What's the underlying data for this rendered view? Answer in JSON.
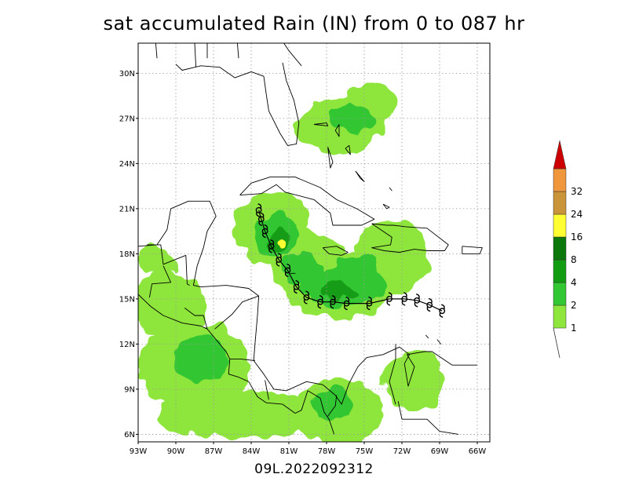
{
  "title": "sat accumulated Rain (IN) from 0 to 087 hr",
  "storm_label": "09L.2022092312",
  "map": {
    "lon_range": [
      -93,
      -65
    ],
    "lat_range": [
      5.5,
      32
    ],
    "lon_ticks": [
      {
        "value": -93,
        "label": "93W"
      },
      {
        "value": -90,
        "label": "90W"
      },
      {
        "value": -87,
        "label": "87W"
      },
      {
        "value": -84,
        "label": "84W"
      },
      {
        "value": -81,
        "label": "81W"
      },
      {
        "value": -78,
        "label": "78W"
      },
      {
        "value": -75,
        "label": "75W"
      },
      {
        "value": -72,
        "label": "72W"
      },
      {
        "value": -69,
        "label": "69W"
      },
      {
        "value": -66,
        "label": "66W"
      }
    ],
    "lat_ticks": [
      {
        "value": 6,
        "label": "6N"
      },
      {
        "value": 9,
        "label": "9N"
      },
      {
        "value": 12,
        "label": "12N"
      },
      {
        "value": 15,
        "label": "15N"
      },
      {
        "value": 18,
        "label": "18N"
      },
      {
        "value": 21,
        "label": "21N"
      },
      {
        "value": 24,
        "label": "24N"
      },
      {
        "value": 27,
        "label": "27N"
      },
      {
        "value": 30,
        "label": "30N"
      }
    ]
  },
  "colorbar": {
    "levels": [
      {
        "label": "1",
        "color": "#8ee63c"
      },
      {
        "label": "2",
        "color": "#33c733"
      },
      {
        "label": "4",
        "color": "#129c12"
      },
      {
        "label": "8",
        "color": "#0c780c"
      },
      {
        "label": "16",
        "color": "#ffff33"
      },
      {
        "label": "24",
        "color": "#c9943a"
      },
      {
        "label": "32",
        "color": "#f0963c"
      }
    ],
    "top_color": "#cc0000"
  },
  "track_points": [
    {
      "lon": -68.8,
      "lat": 14.2
    },
    {
      "lon": -69.8,
      "lat": 14.6
    },
    {
      "lon": -70.8,
      "lat": 14.9
    },
    {
      "lon": -71.8,
      "lat": 15.0
    },
    {
      "lon": -73.0,
      "lat": 15.0
    },
    {
      "lon": -74.6,
      "lat": 14.7
    },
    {
      "lon": -76.4,
      "lat": 14.7
    },
    {
      "lon": -77.5,
      "lat": 14.8
    },
    {
      "lon": -78.5,
      "lat": 14.8
    },
    {
      "lon": -79.6,
      "lat": 15.1
    },
    {
      "lon": -80.4,
      "lat": 15.8
    },
    {
      "lon": -81.1,
      "lat": 16.9
    },
    {
      "lon": -81.8,
      "lat": 17.6
    },
    {
      "lon": -82.4,
      "lat": 18.5
    },
    {
      "lon": -82.9,
      "lat": 19.5
    },
    {
      "lon": -83.2,
      "lat": 20.3
    },
    {
      "lon": -83.4,
      "lat": 20.9
    }
  ],
  "rain_areas": [
    {
      "lon": -82.3,
      "lat": 19.7,
      "rlon": 3.0,
      "rlat": 2.4,
      "level": 0
    },
    {
      "lon": -77.0,
      "lat": 16.0,
      "rlon": 4.5,
      "rlat": 2.3,
      "level": 0
    },
    {
      "lon": -79.5,
      "lat": 17.5,
      "rlon": 3.2,
      "rlat": 2.0,
      "level": 0
    },
    {
      "lon": -73.0,
      "lat": 17.8,
      "rlon": 3.0,
      "rlat": 2.5,
      "level": 0
    },
    {
      "lon": -77.0,
      "lat": 26.5,
      "rlon": 3.5,
      "rlat": 1.8,
      "level": 0
    },
    {
      "lon": -74.5,
      "lat": 28.0,
      "rlon": 2.0,
      "rlat": 1.5,
      "level": 0
    },
    {
      "lon": -88.5,
      "lat": 10.5,
      "rlon": 4.5,
      "rlat": 3.0,
      "level": 0
    },
    {
      "lon": -85.0,
      "lat": 7.3,
      "rlon": 6.5,
      "rlat": 1.6,
      "level": 0
    },
    {
      "lon": -77.0,
      "lat": 7.5,
      "rlon": 3.5,
      "rlat": 2.2,
      "level": 0
    },
    {
      "lon": -71.0,
      "lat": 9.5,
      "rlon": 2.5,
      "rlat": 2.0,
      "level": 0
    },
    {
      "lon": -90.5,
      "lat": 14.5,
      "rlon": 2.8,
      "rlat": 2.2,
      "level": 0
    },
    {
      "lon": -91.5,
      "lat": 17.5,
      "rlon": 1.5,
      "rlat": 1.0,
      "level": 0
    },
    {
      "lon": -82.0,
      "lat": 19.3,
      "rlon": 1.7,
      "rlat": 1.6,
      "level": 1
    },
    {
      "lon": -76.5,
      "lat": 15.8,
      "rlon": 3.4,
      "rlat": 1.3,
      "level": 1
    },
    {
      "lon": -80.0,
      "lat": 17.0,
      "rlon": 1.6,
      "rlat": 1.1,
      "level": 1
    },
    {
      "lon": -75.5,
      "lat": 17.0,
      "rlon": 1.5,
      "rlat": 1.0,
      "level": 1
    },
    {
      "lon": -76.0,
      "lat": 27.0,
      "rlon": 1.8,
      "rlat": 1.0,
      "level": 1
    },
    {
      "lon": -88.0,
      "lat": 11.0,
      "rlon": 2.2,
      "rlat": 1.5,
      "level": 1
    },
    {
      "lon": -77.5,
      "lat": 8.0,
      "rlon": 1.6,
      "rlat": 1.2,
      "level": 1
    },
    {
      "lon": -81.8,
      "lat": 18.9,
      "rlon": 0.7,
      "rlat": 0.9,
      "level": 2
    },
    {
      "lon": -77.0,
      "lat": 15.6,
      "rlon": 1.4,
      "rlat": 0.6,
      "level": 2
    },
    {
      "lon": -81.6,
      "lat": 18.7,
      "rlon": 0.25,
      "rlat": 0.35,
      "level": 4
    }
  ],
  "coastlines": [
    [
      [
        -83.0,
        29.8
      ],
      [
        -84.0,
        30.1
      ],
      [
        -85.3,
        29.7
      ],
      [
        -86.5,
        30.4
      ],
      [
        -88.0,
        30.5
      ],
      [
        -89.5,
        30.2
      ],
      [
        -90.0,
        30.6
      ]
    ],
    [
      [
        -81.5,
        30.7
      ],
      [
        -81.2,
        29.5
      ],
      [
        -80.6,
        28.2
      ],
      [
        -80.2,
        26.7
      ],
      [
        -80.4,
        25.3
      ],
      [
        -81.1,
        25.2
      ],
      [
        -81.7,
        26.0
      ],
      [
        -82.6,
        27.5
      ],
      [
        -82.8,
        28.6
      ],
      [
        -83.0,
        29.8
      ]
    ],
    [
      [
        -84.9,
        21.9
      ],
      [
        -84.0,
        22.7
      ],
      [
        -82.5,
        23.1
      ],
      [
        -80.5,
        23.1
      ],
      [
        -78.5,
        22.4
      ],
      [
        -77.2,
        21.6
      ],
      [
        -75.6,
        21.0
      ],
      [
        -74.2,
        20.3
      ],
      [
        -75.2,
        19.9
      ],
      [
        -77.5,
        19.9
      ],
      [
        -77.7,
        20.7
      ],
      [
        -79.0,
        21.6
      ],
      [
        -81.3,
        22.1
      ],
      [
        -82.0,
        22.6
      ],
      [
        -83.2,
        22.0
      ],
      [
        -84.9,
        21.9
      ]
    ],
    [
      [
        -74.4,
        20.0
      ],
      [
        -73.2,
        19.9
      ],
      [
        -72.7,
        19.9
      ],
      [
        -71.7,
        19.8
      ],
      [
        -70.0,
        19.7
      ],
      [
        -68.3,
        18.6
      ],
      [
        -68.6,
        18.2
      ],
      [
        -70.0,
        18.2
      ],
      [
        -71.0,
        18.3
      ],
      [
        -72.2,
        18.1
      ],
      [
        -73.4,
        18.2
      ],
      [
        -74.4,
        18.4
      ],
      [
        -72.9,
        18.6
      ],
      [
        -72.8,
        19.1
      ],
      [
        -74.4,
        20.0
      ]
    ],
    [
      [
        -78.3,
        18.4
      ],
      [
        -77.2,
        18.5
      ],
      [
        -76.3,
        18.1
      ],
      [
        -76.8,
        17.9
      ],
      [
        -77.8,
        18.0
      ],
      [
        -78.3,
        18.4
      ]
    ],
    [
      [
        -67.2,
        18.5
      ],
      [
        -65.6,
        18.4
      ],
      [
        -65.8,
        18.0
      ],
      [
        -67.2,
        18.0
      ],
      [
        -67.2,
        18.5
      ]
    ],
    [
      [
        -97.0,
        22.0
      ],
      [
        -93.0,
        18.5
      ],
      [
        -91.5,
        18.6
      ],
      [
        -90.7,
        19.6
      ],
      [
        -90.4,
        21.0
      ],
      [
        -89.0,
        21.5
      ],
      [
        -87.3,
        21.5
      ],
      [
        -86.8,
        20.5
      ],
      [
        -87.5,
        19.5
      ],
      [
        -87.8,
        18.4
      ],
      [
        -88.3,
        17.2
      ],
      [
        -88.6,
        15.9
      ],
      [
        -88.0,
        15.8
      ],
      [
        -86.0,
        15.9
      ],
      [
        -84.2,
        15.7
      ],
      [
        -83.4,
        15.2
      ],
      [
        -83.5,
        13.9
      ],
      [
        -83.7,
        12.0
      ],
      [
        -83.8,
        10.9
      ],
      [
        -83.0,
        10.0
      ],
      [
        -82.2,
        9.0
      ],
      [
        -81.2,
        8.9
      ],
      [
        -79.6,
        9.5
      ],
      [
        -78.3,
        9.3
      ],
      [
        -77.3,
        8.6
      ],
      [
        -76.8,
        8.0
      ],
      [
        -76.2,
        9.4
      ],
      [
        -75.5,
        10.5
      ],
      [
        -74.8,
        11.1
      ],
      [
        -73.5,
        11.3
      ],
      [
        -72.2,
        11.8
      ],
      [
        -71.4,
        11.3
      ],
      [
        -71.8,
        10.7
      ],
      [
        -71.5,
        9.2
      ],
      [
        -71.0,
        10.5
      ],
      [
        -71.6,
        11.3
      ],
      [
        -70.2,
        11.5
      ],
      [
        -69.6,
        11.5
      ],
      [
        -68.0,
        10.6
      ],
      [
        -66.0,
        10.6
      ]
    ],
    [
      [
        -93.0,
        15.3
      ],
      [
        -92.0,
        14.5
      ],
      [
        -91.0,
        13.9
      ],
      [
        -89.5,
        13.4
      ],
      [
        -88.0,
        13.2
      ],
      [
        -87.5,
        13.0
      ],
      [
        -87.0,
        12.5
      ],
      [
        -86.0,
        11.5
      ],
      [
        -85.7,
        11.0
      ],
      [
        -85.8,
        10.0
      ],
      [
        -85.0,
        9.8
      ],
      [
        -84.2,
        9.5
      ],
      [
        -83.5,
        8.5
      ],
      [
        -82.8,
        8.1
      ],
      [
        -81.5,
        8.0
      ],
      [
        -80.5,
        7.4
      ],
      [
        -80.0,
        7.6
      ],
      [
        -79.5,
        8.9
      ],
      [
        -78.5,
        8.4
      ],
      [
        -78.2,
        7.5
      ],
      [
        -77.8,
        7.0
      ],
      [
        -77.4,
        6.0
      ]
    ],
    [
      [
        -77.9,
        25.1
      ],
      [
        -77.5,
        24.1
      ],
      [
        -77.7,
        23.7
      ],
      [
        -77.9,
        25.1
      ]
    ],
    [
      [
        -77.0,
        26.6
      ],
      [
        -77.3,
        26.2
      ],
      [
        -77.0,
        25.8
      ],
      [
        -77.0,
        26.6
      ]
    ],
    [
      [
        -79.0,
        26.6
      ],
      [
        -78.0,
        26.7
      ],
      [
        -77.9,
        26.5
      ],
      [
        -79.0,
        26.6
      ]
    ],
    [
      [
        -76.5,
        25.0
      ],
      [
        -76.1,
        24.6
      ],
      [
        -76.2,
        25.2
      ],
      [
        -76.5,
        25.0
      ]
    ],
    [
      [
        -75.7,
        23.5
      ],
      [
        -75.3,
        23.0
      ],
      [
        -75.0,
        22.8
      ],
      [
        -75.7,
        23.5
      ]
    ],
    [
      [
        -73.5,
        21.3
      ],
      [
        -73.0,
        21.1
      ],
      [
        -73.2,
        21.0
      ],
      [
        -73.5,
        21.3
      ]
    ],
    [
      [
        -73.0,
        22.4
      ],
      [
        -72.8,
        22.2
      ],
      [
        -72.9,
        22.3
      ],
      [
        -73.0,
        22.4
      ]
    ],
    [
      [
        -80.9,
        16.7
      ],
      [
        -80.5,
        16.7
      ],
      [
        -80.9,
        16.7
      ]
    ],
    [
      [
        -70.1,
        12.6
      ],
      [
        -69.9,
        12.4
      ],
      [
        -70.1,
        12.6
      ]
    ],
    [
      [
        -69.2,
        12.3
      ],
      [
        -68.9,
        12.0
      ],
      [
        -69.2,
        12.3
      ]
    ],
    [
      [
        -92.3,
        18.6
      ],
      [
        -91.2,
        18.6
      ],
      [
        -91.0,
        17.3
      ],
      [
        -89.2,
        17.9
      ]
    ],
    [
      [
        -89.2,
        17.9
      ],
      [
        -89.1,
        16.0
      ],
      [
        -88.9,
        15.9
      ]
    ],
    [
      [
        -91.0,
        17.2
      ],
      [
        -90.4,
        16.1
      ],
      [
        -91.9,
        16.0
      ],
      [
        -92.1,
        15.1
      ]
    ],
    [
      [
        -89.3,
        14.4
      ],
      [
        -88.5,
        13.9
      ],
      [
        -87.8,
        13.9
      ],
      [
        -87.5,
        13.0
      ]
    ],
    [
      [
        -86.9,
        13.0
      ],
      [
        -85.5,
        14.0
      ],
      [
        -84.7,
        14.8
      ],
      [
        -83.4,
        15.2
      ]
    ],
    [
      [
        -85.7,
        11.0
      ],
      [
        -84.8,
        11.0
      ],
      [
        -83.7,
        10.9
      ]
    ],
    [
      [
        -82.9,
        9.6
      ],
      [
        -82.6,
        8.3
      ]
    ],
    [
      [
        -77.9,
        7.2
      ],
      [
        -77.3,
        7.9
      ],
      [
        -77.2,
        8.6
      ]
    ],
    [
      [
        -72.3,
        8.2
      ],
      [
        -72.0,
        7.0
      ],
      [
        -70.0,
        7.0
      ],
      [
        -69.0,
        6.2
      ],
      [
        -67.5,
        6.0
      ]
    ],
    [
      [
        -72.5,
        12.0
      ],
      [
        -72.5,
        11.0
      ],
      [
        -73.0,
        9.5
      ],
      [
        -72.5,
        8.0
      ]
    ],
    [
      [
        -80.0,
        30.5
      ],
      [
        -81.0,
        31.5
      ],
      [
        -81.4,
        32.0
      ]
    ],
    [
      [
        -87.5,
        31.0
      ],
      [
        -87.5,
        32.0
      ]
    ],
    [
      [
        -85.0,
        31.0
      ],
      [
        -85.1,
        32.0
      ]
    ],
    [
      [
        -88.4,
        30.4
      ],
      [
        -88.5,
        32.0
      ]
    ],
    [
      [
        -91.5,
        31.0
      ],
      [
        -91.6,
        32.0
      ]
    ]
  ]
}
